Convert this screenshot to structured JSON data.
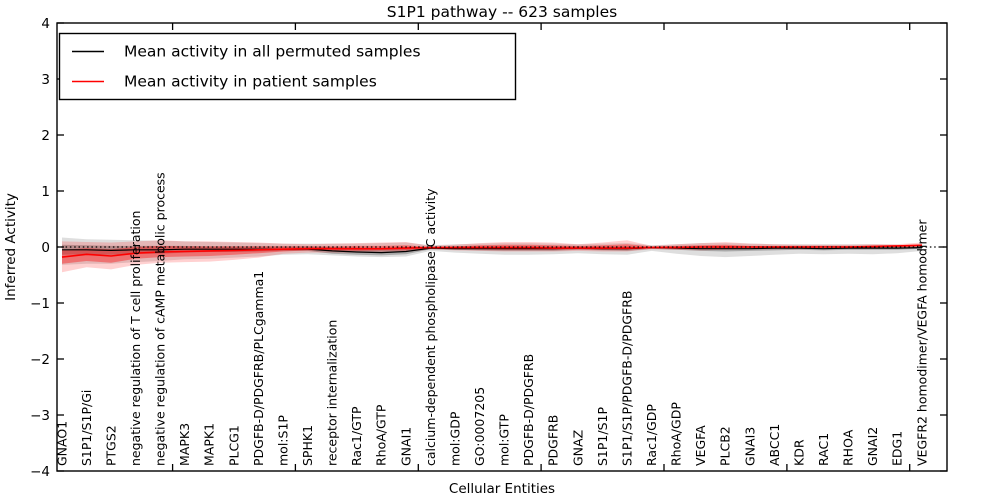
{
  "chart_data": {
    "type": "line",
    "title": "S1P1 pathway -- 623 samples",
    "xlabel": "Cellular Entities",
    "ylabel": "Inferred Activity",
    "ylim": [
      -4,
      4
    ],
    "yticks": [
      -4,
      -3,
      -2,
      -1,
      0,
      1,
      2,
      3,
      4
    ],
    "ytick_labels": [
      "−4",
      "−3",
      "−2",
      "−1",
      "0",
      "1",
      "2",
      "3",
      "4"
    ],
    "grid": false,
    "legend_position": "upper left",
    "zero_reference_line": {
      "y": 0,
      "style": "dotted",
      "color": "#000000"
    },
    "categories": [
      "GNAO1",
      "S1P1/S1P/Gi",
      "PTGS2",
      "negative regulation of T cell proliferation",
      "negative regulation of cAMP metabolic process",
      "MAPK3",
      "MAPK1",
      "PLCG1",
      "PDGFB-D/PDGFRB/PLCgamma1",
      "mol:S1P",
      "SPHK1",
      "receptor internalization",
      "Rac1/GTP",
      "RhoA/GTP",
      "GNAI1",
      "calcium-dependent phospholipase C activity",
      "mol:GDP",
      "GO:0007205",
      "mol:GTP",
      "PDGFB-D/PDGFRB",
      "PDGFRB",
      "GNAZ",
      "S1P1/S1P",
      "S1P1/S1P/PDGFB-D/PDGFRB",
      "Rac1/GDP",
      "RhoA/GDP",
      "VEGFA",
      "PLCB2",
      "GNAI3",
      "ABCC1",
      "KDR",
      "RAC1",
      "RHOA",
      "GNAI2",
      "EDG1",
      "VEGFR2 homodimer/VEGFA homodimer"
    ],
    "series": [
      {
        "name": "Mean activity in all permuted samples",
        "color": "#000000",
        "mean": [
          -0.05,
          -0.05,
          -0.06,
          -0.05,
          -0.05,
          -0.04,
          -0.04,
          -0.04,
          -0.04,
          -0.04,
          -0.04,
          -0.07,
          -0.09,
          -0.1,
          -0.08,
          -0.02,
          -0.03,
          -0.03,
          -0.03,
          -0.03,
          -0.03,
          -0.02,
          -0.03,
          -0.03,
          -0.01,
          -0.02,
          -0.03,
          -0.03,
          -0.03,
          -0.02,
          -0.02,
          -0.03,
          -0.02,
          -0.02,
          -0.02,
          -0.01
        ],
        "inner_band_upper": [
          0.04,
          0.03,
          0.02,
          0.02,
          0.02,
          0.02,
          0.01,
          0.01,
          0.01,
          0.01,
          0.01,
          0.0,
          -0.01,
          -0.02,
          0.0,
          0.0,
          0.01,
          0.01,
          0.01,
          0.01,
          0.01,
          0.01,
          0.01,
          0.01,
          0.0,
          0.01,
          0.01,
          0.01,
          0.01,
          0.01,
          0.01,
          0.01,
          0.01,
          0.01,
          0.01,
          0.01
        ],
        "inner_band_lower": [
          -0.14,
          -0.13,
          -0.14,
          -0.12,
          -0.12,
          -0.1,
          -0.09,
          -0.09,
          -0.08,
          -0.07,
          -0.07,
          -0.12,
          -0.14,
          -0.15,
          -0.13,
          -0.04,
          -0.05,
          -0.06,
          -0.07,
          -0.07,
          -0.07,
          -0.05,
          -0.06,
          -0.07,
          -0.03,
          -0.05,
          -0.07,
          -0.08,
          -0.07,
          -0.06,
          -0.05,
          -0.06,
          -0.05,
          -0.05,
          -0.05,
          -0.03
        ],
        "outer_band_upper": [
          0.17,
          0.14,
          0.13,
          0.12,
          0.11,
          0.1,
          0.09,
          0.08,
          0.07,
          0.06,
          0.06,
          0.06,
          0.06,
          0.07,
          0.08,
          0.03,
          0.05,
          0.06,
          0.07,
          0.07,
          0.06,
          0.05,
          0.06,
          0.07,
          0.03,
          0.05,
          0.07,
          0.07,
          0.06,
          0.05,
          0.05,
          0.05,
          0.05,
          0.05,
          0.04,
          0.03
        ],
        "outer_band_lower": [
          -0.32,
          -0.3,
          -0.3,
          -0.27,
          -0.25,
          -0.22,
          -0.21,
          -0.19,
          -0.17,
          -0.14,
          -0.13,
          -0.15,
          -0.17,
          -0.18,
          -0.17,
          -0.07,
          -0.1,
          -0.12,
          -0.14,
          -0.14,
          -0.13,
          -0.11,
          -0.13,
          -0.14,
          -0.07,
          -0.12,
          -0.16,
          -0.18,
          -0.16,
          -0.14,
          -0.12,
          -0.13,
          -0.12,
          -0.13,
          -0.11,
          -0.07
        ]
      },
      {
        "name": "Mean activity in patient samples",
        "color": "#ff0000",
        "mean": [
          -0.18,
          -0.13,
          -0.16,
          -0.11,
          -0.09,
          -0.08,
          -0.07,
          -0.06,
          -0.05,
          -0.04,
          -0.03,
          -0.03,
          -0.03,
          -0.03,
          -0.02,
          -0.01,
          -0.01,
          -0.01,
          -0.01,
          -0.01,
          -0.02,
          -0.02,
          -0.02,
          -0.02,
          -0.01,
          -0.01,
          0.0,
          0.0,
          0.0,
          0.0,
          0.0,
          0.0,
          0.0,
          0.01,
          0.02,
          0.03
        ],
        "inner_band_upper": [
          -0.05,
          -0.02,
          -0.04,
          0.0,
          0.02,
          0.01,
          0.01,
          0.01,
          0.01,
          0.01,
          0.01,
          0.01,
          0.02,
          0.02,
          0.03,
          0.0,
          0.01,
          0.03,
          0.04,
          0.04,
          0.03,
          0.02,
          0.03,
          0.05,
          0.01,
          0.02,
          0.03,
          0.04,
          0.02,
          0.02,
          0.02,
          0.02,
          0.02,
          0.02,
          0.03,
          0.05
        ],
        "inner_band_lower": [
          -0.3,
          -0.25,
          -0.28,
          -0.21,
          -0.18,
          -0.17,
          -0.16,
          -0.14,
          -0.11,
          -0.08,
          -0.06,
          -0.06,
          -0.07,
          -0.06,
          -0.06,
          -0.02,
          -0.03,
          -0.04,
          -0.05,
          -0.05,
          -0.05,
          -0.04,
          -0.05,
          -0.05,
          -0.02,
          -0.03,
          -0.03,
          -0.03,
          -0.02,
          -0.02,
          -0.02,
          -0.01,
          -0.01,
          -0.01,
          0.0,
          0.01
        ],
        "outer_band_upper": [
          0.1,
          0.09,
          0.08,
          0.1,
          0.12,
          0.1,
          0.1,
          0.09,
          0.08,
          0.06,
          0.05,
          0.06,
          0.07,
          0.08,
          0.09,
          0.02,
          0.04,
          0.07,
          0.09,
          0.09,
          0.08,
          0.05,
          0.08,
          0.12,
          0.02,
          0.05,
          0.07,
          0.09,
          0.06,
          0.05,
          0.04,
          0.04,
          0.04,
          0.05,
          0.05,
          0.08
        ],
        "outer_band_lower": [
          -0.45,
          -0.36,
          -0.4,
          -0.32,
          -0.28,
          -0.27,
          -0.26,
          -0.23,
          -0.19,
          -0.12,
          -0.1,
          -0.1,
          -0.1,
          -0.1,
          -0.09,
          -0.04,
          -0.06,
          -0.07,
          -0.08,
          -0.08,
          -0.08,
          -0.07,
          -0.08,
          -0.08,
          -0.04,
          -0.05,
          -0.06,
          -0.05,
          -0.04,
          -0.04,
          -0.04,
          -0.03,
          -0.03,
          -0.03,
          -0.02,
          0.0
        ]
      }
    ]
  }
}
